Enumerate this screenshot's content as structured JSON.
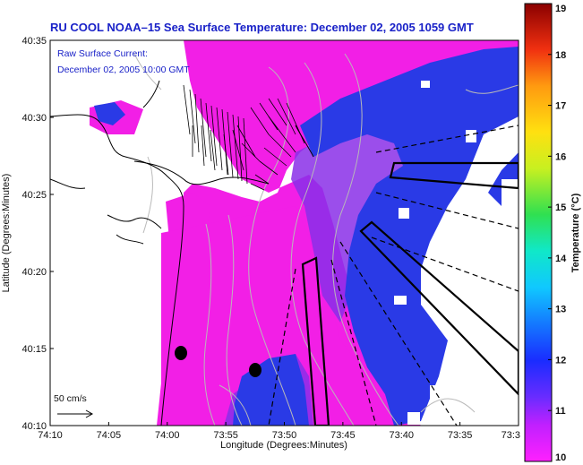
{
  "chart_data": {
    "type": "heatmap",
    "title": "RU COOL  NOAA–15  Sea Surface Temperature:  December 02, 2005 1059 GMT",
    "annotation_lines": [
      "Raw Surface Current:",
      "December 02, 2005 10:00 GMT"
    ],
    "xlabel": "Longitude (Degrees:Minutes)",
    "ylabel": "Latitude (Degrees:Minutes)",
    "x_ticks": [
      "74:10",
      "74:05",
      "74:00",
      "73:55",
      "73:50",
      "73:45",
      "73:40",
      "73:35",
      "73:3"
    ],
    "y_ticks": [
      "40:35",
      "40:30",
      "40:25",
      "40:20",
      "40:15",
      "40:10"
    ],
    "colorbar": {
      "label": "Temperature (°C)",
      "ticks": [
        "19",
        "18",
        "17",
        "16",
        "15",
        "14",
        "13",
        "12",
        "11",
        "10"
      ],
      "range": [
        10,
        19
      ]
    },
    "scale_label": "50 cm/s",
    "colors": {
      "land": "#ffffff",
      "warm_water": "#f21fe6",
      "mid_water": "#8a2fe8",
      "cool_water": "#2a3ae6",
      "coast": "#000000",
      "contours": "#b9b9b9"
    }
  }
}
